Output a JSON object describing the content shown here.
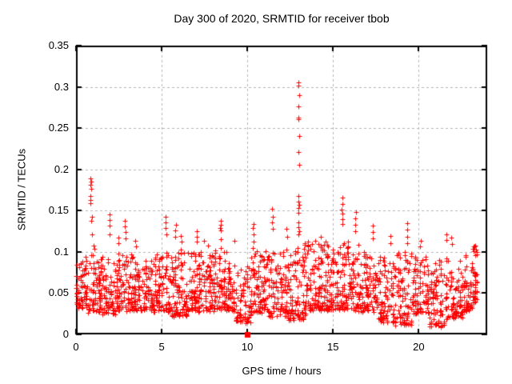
{
  "window": {
    "background": "#ffffff"
  },
  "colors": {
    "marker": "#ff0000",
    "grid": "#b3b3b3",
    "axis": "#000000",
    "text": "#000000"
  },
  "chart_data": {
    "type": "scatter",
    "title": "Day 300 of 2020, SRMTID for receiver tbob",
    "xlabel": "GPS time / hours",
    "ylabel": "SRMTID / TECUs",
    "xlim": [
      0,
      24
    ],
    "ylim": [
      0,
      0.35
    ],
    "grid": true,
    "legend": "none",
    "marker": {
      "symbol": "plus",
      "color": "#ff0000",
      "size": 7
    },
    "xticks": [
      {
        "value": 0,
        "label": "0"
      },
      {
        "value": 5,
        "label": "5"
      },
      {
        "value": 10,
        "label": "10"
      },
      {
        "value": 15,
        "label": "15"
      },
      {
        "value": 20,
        "label": "20"
      }
    ],
    "yticks": [
      {
        "value": 0,
        "label": "0"
      },
      {
        "value": 0.05,
        "label": "0.05"
      },
      {
        "value": 0.1,
        "label": "0.1"
      },
      {
        "value": 0.15,
        "label": "0.15"
      },
      {
        "value": 0.2,
        "label": "0.2"
      },
      {
        "value": 0.25,
        "label": "0.25"
      },
      {
        "value": 0.3,
        "label": "0.3"
      },
      {
        "value": 0.35,
        "label": "0.35"
      }
    ],
    "special_points": [
      {
        "x": 10,
        "y": 0,
        "marker": "filled-square",
        "color": "#ff0000"
      }
    ],
    "spike_columns": [
      {
        "x": 0.85,
        "ys": [
          0.189,
          0.185,
          0.181,
          0.176,
          0.168,
          0.163,
          0.159
        ]
      },
      {
        "x": 0.93,
        "ys": [
          0.143,
          0.138,
          0.121
        ]
      },
      {
        "x": 1.05,
        "ys": [
          0.108,
          0.104
        ]
      },
      {
        "x": 1.95,
        "ys": [
          0.145,
          0.139,
          0.132,
          0.121
        ]
      },
      {
        "x": 2.45,
        "ys": [
          0.117,
          0.111
        ]
      },
      {
        "x": 2.85,
        "ys": [
          0.138,
          0.131,
          0.124,
          0.116
        ]
      },
      {
        "x": 3.5,
        "ys": [
          0.113,
          0.107
        ]
      },
      {
        "x": 5.25,
        "ys": [
          0.143,
          0.136,
          0.129,
          0.121
        ]
      },
      {
        "x": 5.8,
        "ys": [
          0.133,
          0.126,
          0.118
        ]
      },
      {
        "x": 6.15,
        "ys": [
          0.119,
          0.112
        ]
      },
      {
        "x": 7.05,
        "ys": [
          0.125,
          0.118,
          0.112
        ]
      },
      {
        "x": 7.5,
        "ys": [
          0.113
        ]
      },
      {
        "x": 8.45,
        "ys": [
          0.138,
          0.133,
          0.129,
          0.126,
          0.115,
          0.105
        ]
      },
      {
        "x": 9.25,
        "ys": [
          0.113
        ]
      },
      {
        "x": 10.35,
        "ys": [
          0.134,
          0.129,
          0.121,
          0.112,
          0.105
        ]
      },
      {
        "x": 11.45,
        "ys": [
          0.152,
          0.143,
          0.136,
          0.128
        ]
      },
      {
        "x": 12.3,
        "ys": [
          0.128,
          0.118
        ]
      },
      {
        "x": 13.0,
        "ys": [
          0.305,
          0.302,
          0.29,
          0.276,
          0.263,
          0.261,
          0.24,
          0.221,
          0.206,
          0.168,
          0.161,
          0.157,
          0.153,
          0.147,
          0.136,
          0.13,
          0.125,
          0.121
        ]
      },
      {
        "x": 13.55,
        "ys": [
          0.112,
          0.108
        ]
      },
      {
        "x": 14.3,
        "ys": [
          0.118,
          0.108
        ]
      },
      {
        "x": 15.55,
        "ys": [
          0.166,
          0.158,
          0.151,
          0.146,
          0.14,
          0.134
        ]
      },
      {
        "x": 16.3,
        "ys": [
          0.148,
          0.141,
          0.133,
          0.125
        ]
      },
      {
        "x": 17.35,
        "ys": [
          0.132,
          0.124,
          0.116
        ]
      },
      {
        "x": 18.35,
        "ys": [
          0.119,
          0.111
        ]
      },
      {
        "x": 19.35,
        "ys": [
          0.135,
          0.127,
          0.118,
          0.111
        ]
      },
      {
        "x": 20.1,
        "ys": [
          0.113,
          0.107
        ]
      },
      {
        "x": 21.65,
        "ys": [
          0.121,
          0.114
        ]
      },
      {
        "x": 21.9,
        "ys": [
          0.117,
          0.11
        ]
      },
      {
        "x": 23.2,
        "ys": [
          0.107,
          0.101
        ]
      },
      {
        "x": 23.35,
        "ys": [
          0.103,
          0.097
        ]
      }
    ],
    "baseline_bands": [
      {
        "x0": 0.0,
        "x1": 0.5,
        "n": 50,
        "ymin": 0.032,
        "ymax": 0.092
      },
      {
        "x0": 0.5,
        "x1": 1.5,
        "n": 95,
        "ymin": 0.028,
        "ymax": 0.098
      },
      {
        "x0": 1.5,
        "x1": 2.5,
        "n": 95,
        "ymin": 0.025,
        "ymax": 0.1
      },
      {
        "x0": 2.5,
        "x1": 3.5,
        "n": 95,
        "ymin": 0.03,
        "ymax": 0.098
      },
      {
        "x0": 3.5,
        "x1": 4.5,
        "n": 90,
        "ymin": 0.03,
        "ymax": 0.092
      },
      {
        "x0": 4.5,
        "x1": 5.5,
        "n": 95,
        "ymin": 0.028,
        "ymax": 0.1
      },
      {
        "x0": 5.5,
        "x1": 6.5,
        "n": 95,
        "ymin": 0.022,
        "ymax": 0.102
      },
      {
        "x0": 6.5,
        "x1": 7.5,
        "n": 95,
        "ymin": 0.028,
        "ymax": 0.102
      },
      {
        "x0": 7.5,
        "x1": 8.5,
        "n": 95,
        "ymin": 0.03,
        "ymax": 0.108
      },
      {
        "x0": 8.5,
        "x1": 9.3,
        "n": 75,
        "ymin": 0.03,
        "ymax": 0.1
      },
      {
        "x0": 9.3,
        "x1": 10.2,
        "n": 80,
        "ymin": 0.015,
        "ymax": 0.085
      },
      {
        "x0": 10.2,
        "x1": 11.2,
        "n": 95,
        "ymin": 0.028,
        "ymax": 0.1
      },
      {
        "x0": 11.2,
        "x1": 12.4,
        "n": 110,
        "ymin": 0.022,
        "ymax": 0.105
      },
      {
        "x0": 12.4,
        "x1": 13.4,
        "n": 100,
        "ymin": 0.018,
        "ymax": 0.112
      },
      {
        "x0": 13.4,
        "x1": 14.6,
        "n": 110,
        "ymin": 0.03,
        "ymax": 0.115
      },
      {
        "x0": 14.6,
        "x1": 15.6,
        "n": 95,
        "ymin": 0.03,
        "ymax": 0.11
      },
      {
        "x0": 15.6,
        "x1": 16.6,
        "n": 95,
        "ymin": 0.03,
        "ymax": 0.112
      },
      {
        "x0": 16.6,
        "x1": 17.6,
        "n": 90,
        "ymin": 0.028,
        "ymax": 0.102
      },
      {
        "x0": 17.6,
        "x1": 18.6,
        "n": 85,
        "ymin": 0.015,
        "ymax": 0.095
      },
      {
        "x0": 18.6,
        "x1": 19.6,
        "n": 90,
        "ymin": 0.012,
        "ymax": 0.1
      },
      {
        "x0": 19.6,
        "x1": 20.6,
        "n": 90,
        "ymin": 0.025,
        "ymax": 0.098
      },
      {
        "x0": 20.6,
        "x1": 21.6,
        "n": 85,
        "ymin": 0.01,
        "ymax": 0.092
      },
      {
        "x0": 21.6,
        "x1": 22.6,
        "n": 85,
        "ymin": 0.02,
        "ymax": 0.092
      },
      {
        "x0": 22.6,
        "x1": 23.1,
        "n": 50,
        "ymin": 0.03,
        "ymax": 0.095
      },
      {
        "x0": 23.1,
        "x1": 23.45,
        "n": 45,
        "ymin": 0.04,
        "ymax": 0.108
      }
    ],
    "seed": 300
  }
}
